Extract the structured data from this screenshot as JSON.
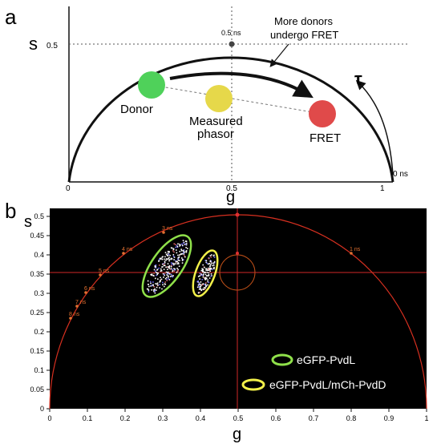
{
  "panel_a": {
    "panel_label": "a",
    "y_axis_label": "s",
    "y_tick": "0.5",
    "x_axis_label": "g",
    "x_ticks": [
      "0",
      "0.5",
      "1"
    ],
    "tau_top_label": "0.5 ns",
    "tau_zero_label": "0 ns",
    "tau_symbol": "τ",
    "annotation_line1": "More donors",
    "annotation_line2": "undergo FRET",
    "donor_label": "Donor",
    "measured_label_line1": "Measured",
    "measured_label_line2": "phasor",
    "fret_label": "FRET",
    "colors": {
      "donor": "#4fd15a",
      "measured": "#e6d84a",
      "fret": "#e04a4a"
    }
  },
  "panel_b": {
    "panel_label": "b",
    "y_axis_label": "s",
    "x_axis_label": "g",
    "x_ticks": [
      "0",
      "0.1",
      "0.2",
      "0.3",
      "0.4",
      "0.5",
      "0.6",
      "0.7",
      "0.8",
      "0.9",
      "1"
    ],
    "y_ticks": [
      "0",
      "0.05",
      "0.1",
      "0.15",
      "0.2",
      "0.25",
      "0.3",
      "0.35",
      "0.4",
      "0.45",
      "0.5"
    ],
    "lifetime_labels": [
      "1 ns",
      "3 ns",
      "4 ns",
      "5 ns",
      "6 ns",
      "7 ns",
      "8 ns"
    ],
    "legend": [
      {
        "label": "eGFP-PvdL",
        "color": "#8fe04a"
      },
      {
        "label": "eGFP-PvdL/mCh-PvdD",
        "color": "#f2f04a"
      }
    ],
    "colors": {
      "background": "#000000",
      "semicircle": "#e02020"
    }
  }
}
